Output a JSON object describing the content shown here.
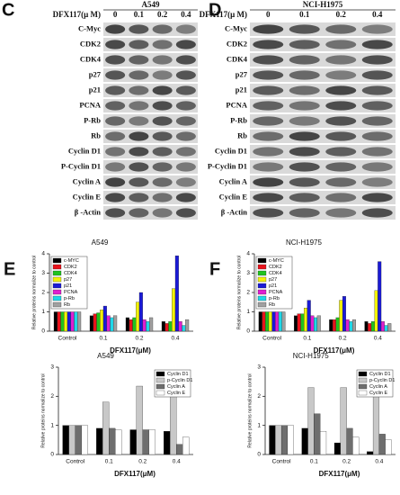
{
  "blots": [
    {
      "label": "C",
      "cell_line": "A549",
      "dose_label": "DFX117(μ M)",
      "doses": [
        "0",
        "0.1",
        "0.2",
        "0.4"
      ],
      "proteins": [
        "C-Myc",
        "CDK2",
        "CDK4",
        "p27",
        "p21",
        "PCNA",
        "P-Rb",
        "Rb",
        "Cyclin D1",
        "P-Cyclin D1",
        "Cyclin A",
        "Cyclin E",
        "β -Actin"
      ]
    },
    {
      "label": "D",
      "cell_line": "NCI-H1975",
      "dose_label": "DFX117(μ M)",
      "doses": [
        "0",
        "0.1",
        "0.2",
        "0.4"
      ],
      "proteins": [
        "C-Myc",
        "CDK2",
        "CDK4",
        "p27",
        "p21",
        "PCNA",
        "P-Rb",
        "Rb",
        "Cyclin D1",
        "P-Cyclin D1",
        "Cyclin A",
        "Cyclin E",
        "β -Actin"
      ]
    }
  ],
  "chart_data": [
    {
      "type": "bar",
      "label": "E",
      "title": "A549",
      "x_label": "DFX117(μM)",
      "y_label": "Relative proteins normalize to control",
      "categories": [
        "Control",
        "0.1",
        "0.2",
        "0.4"
      ],
      "ylim": [
        0,
        4
      ],
      "yticks": [
        0,
        1,
        2,
        3,
        4
      ],
      "legend": "upper left",
      "series": [
        {
          "name": "c-MYC",
          "color": "#000000",
          "values": [
            1,
            0.8,
            0.7,
            0.5
          ]
        },
        {
          "name": "CDK2",
          "color": "#e8121b",
          "values": [
            1,
            0.9,
            0.6,
            0.4
          ]
        },
        {
          "name": "CDK4",
          "color": "#1fc31f",
          "values": [
            1,
            0.95,
            0.7,
            0.5
          ]
        },
        {
          "name": "p27",
          "color": "#f2f20a",
          "values": [
            1,
            1.1,
            1.5,
            2.2
          ]
        },
        {
          "name": "p21",
          "color": "#1a1ad6",
          "values": [
            1,
            1.3,
            2.0,
            3.9
          ]
        },
        {
          "name": "PCNA",
          "color": "#e01fd0",
          "values": [
            1,
            0.8,
            0.6,
            0.5
          ]
        },
        {
          "name": "p-Rb",
          "color": "#1fd8e8",
          "values": [
            1,
            0.7,
            0.5,
            0.3
          ]
        },
        {
          "name": "Rb",
          "color": "#a0a0a0",
          "values": [
            1,
            0.8,
            0.7,
            0.6
          ]
        }
      ]
    },
    {
      "type": "bar",
      "label": "F",
      "title": "NCI-H1975",
      "x_label": "DFX117(μM)",
      "y_label": "Relative proteins normalize to control",
      "categories": [
        "Control",
        "0.1",
        "0.2",
        "0.4"
      ],
      "ylim": [
        0,
        4
      ],
      "yticks": [
        0,
        1,
        2,
        3,
        4
      ],
      "legend": "upper left",
      "series": [
        {
          "name": "c-MYC",
          "color": "#000000",
          "values": [
            1,
            0.8,
            0.6,
            0.5
          ]
        },
        {
          "name": "CDK2",
          "color": "#e8121b",
          "values": [
            1,
            0.9,
            0.6,
            0.4
          ]
        },
        {
          "name": "CDK4",
          "color": "#1fc31f",
          "values": [
            1,
            0.9,
            0.7,
            0.5
          ]
        },
        {
          "name": "p27",
          "color": "#f2f20a",
          "values": [
            1,
            1.2,
            1.6,
            2.1
          ]
        },
        {
          "name": "p21",
          "color": "#1a1ad6",
          "values": [
            1,
            1.6,
            1.8,
            3.6
          ]
        },
        {
          "name": "PCNA",
          "color": "#e01fd0",
          "values": [
            1,
            0.8,
            0.6,
            0.5
          ]
        },
        {
          "name": "p-Rb",
          "color": "#1fd8e8",
          "values": [
            1,
            0.7,
            0.5,
            0.3
          ]
        },
        {
          "name": "Rb",
          "color": "#a0a0a0",
          "values": [
            1,
            0.8,
            0.6,
            0.4
          ]
        }
      ]
    },
    {
      "type": "bar",
      "title": "A549",
      "x_label": "DFX117(μM)",
      "y_label": "Relative proteins normalize to control",
      "categories": [
        "Control",
        "0.1",
        "0.2",
        "0.4"
      ],
      "ylim": [
        0,
        3
      ],
      "yticks": [
        0,
        1,
        2,
        3
      ],
      "legend": "upper right",
      "series": [
        {
          "name": "Cyclin D1",
          "color": "#000000",
          "values": [
            1,
            0.9,
            0.85,
            0.8
          ]
        },
        {
          "name": "p-Cyclin D1",
          "color": "#c8c8c8",
          "values": [
            1,
            1.8,
            2.35,
            2.4
          ]
        },
        {
          "name": "Cyclin A",
          "color": "#6e6e6e",
          "values": [
            1,
            0.9,
            0.85,
            0.35
          ]
        },
        {
          "name": "Cyclin E",
          "color": "#ffffff",
          "values": [
            1,
            0.85,
            0.85,
            0.6
          ]
        }
      ]
    },
    {
      "type": "bar",
      "title": "NCI-H1975",
      "x_label": "DFX117(μM)",
      "y_label": "Relative proteins normalize to control",
      "categories": [
        "Control",
        "0.1",
        "0.2",
        "0.4"
      ],
      "ylim": [
        0,
        3
      ],
      "yticks": [
        0,
        1,
        2,
        3
      ],
      "legend": "upper right",
      "series": [
        {
          "name": "Cyclin D1",
          "color": "#000000",
          "values": [
            1,
            0.9,
            0.4,
            0.1
          ]
        },
        {
          "name": "p-Cyclin D1",
          "color": "#c8c8c8",
          "values": [
            1,
            2.3,
            2.3,
            2.5
          ]
        },
        {
          "name": "Cyclin A",
          "color": "#6e6e6e",
          "values": [
            1,
            1.4,
            0.9,
            0.7
          ]
        },
        {
          "name": "Cyclin E",
          "color": "#ffffff",
          "values": [
            1,
            0.8,
            0.6,
            0.5
          ]
        }
      ]
    }
  ]
}
